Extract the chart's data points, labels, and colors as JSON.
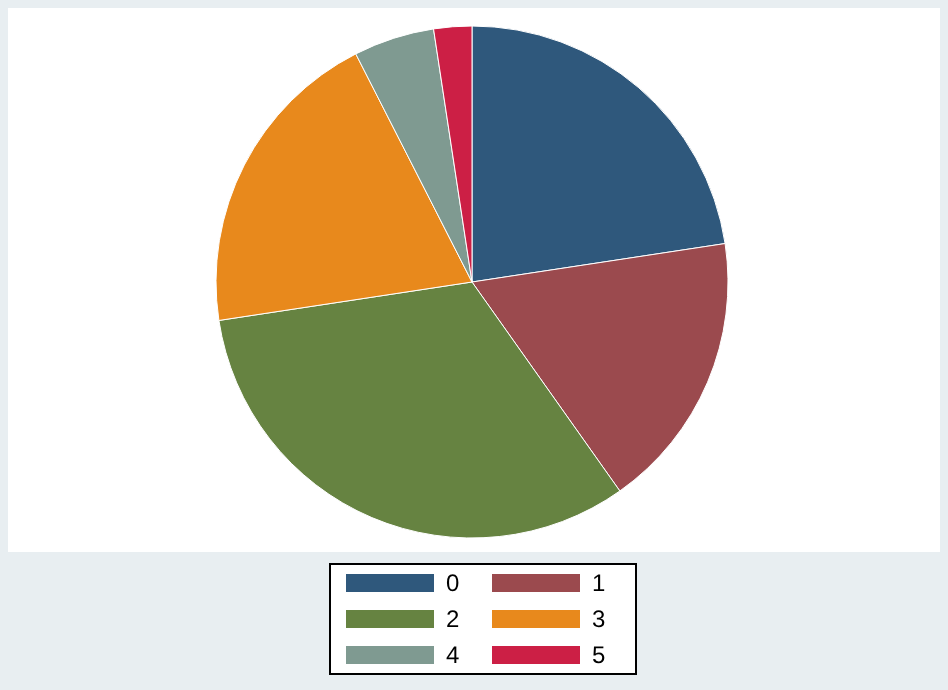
{
  "chart_data": {
    "type": "pie",
    "categories": [
      "0",
      "1",
      "2",
      "3",
      "4",
      "5"
    ],
    "values": [
      22.6,
      17.6,
      32.4,
      19.9,
      5.1,
      2.4
    ],
    "colors": [
      "#2f587c",
      "#9b4a4e",
      "#668341",
      "#e8891c",
      "#7f9a91",
      "#cc1f45"
    ],
    "legend": "bottom"
  }
}
